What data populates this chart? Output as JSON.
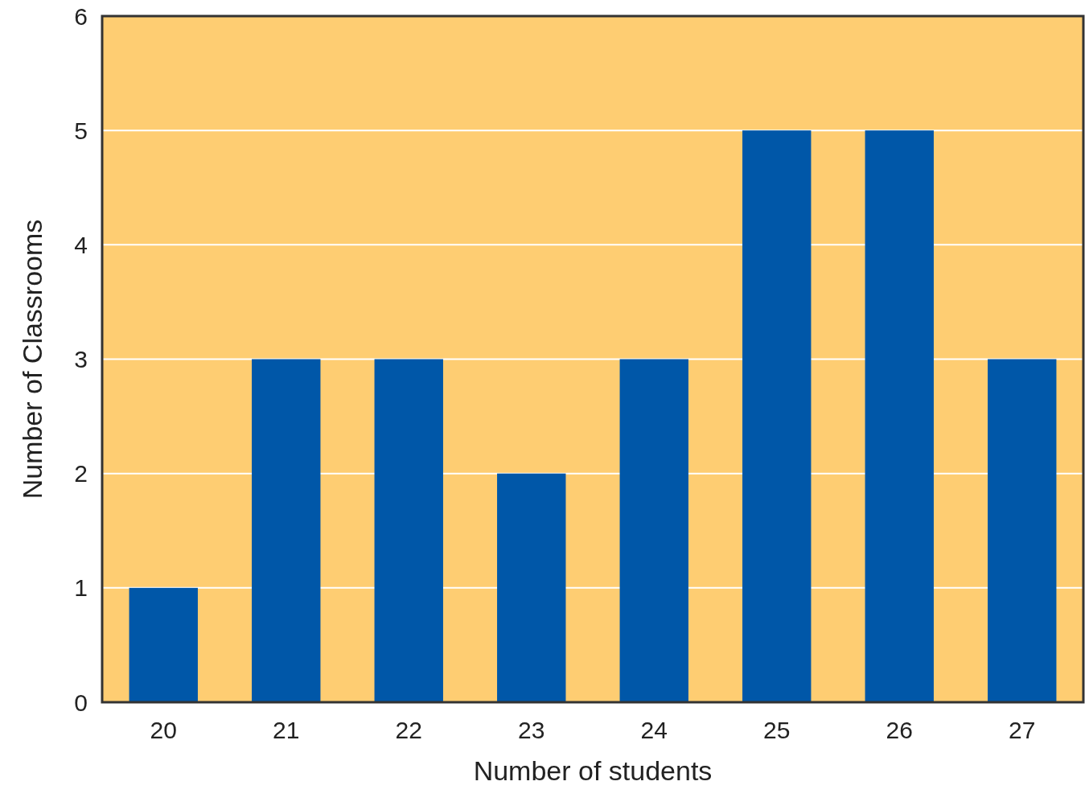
{
  "chart_data": {
    "type": "bar",
    "categories": [
      "20",
      "21",
      "22",
      "23",
      "24",
      "25",
      "26",
      "27"
    ],
    "values": [
      1,
      3,
      3,
      2,
      3,
      5,
      5,
      3
    ],
    "color": "#0057a8",
    "ylim": [
      0,
      6
    ],
    "yticks": [
      0,
      1,
      2,
      3,
      4,
      5,
      6
    ],
    "grid": "y",
    "xlabel": "Number of students",
    "ylabel": "Number of Classrooms"
  }
}
